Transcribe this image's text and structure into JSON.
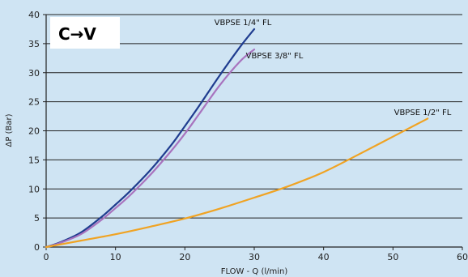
{
  "chart_data": {
    "type": "line",
    "title": "C→V",
    "xlabel": "FLOW - Q (l/min)",
    "ylabel": "ΔP (Bar)",
    "xlim": [
      0,
      60
    ],
    "ylim": [
      0,
      40
    ],
    "xticks": [
      0,
      10,
      20,
      30,
      40,
      50,
      60
    ],
    "yticks": [
      0,
      5,
      10,
      15,
      20,
      25,
      30,
      35,
      40
    ],
    "grid": "horizontal",
    "series": [
      {
        "name": "VBPSE 1/4\" FL",
        "color": "#1f3c8f",
        "x": [
          0,
          2,
          5,
          8,
          10,
          12,
          15,
          18,
          20,
          22,
          25,
          28,
          30
        ],
        "y": [
          0,
          0.8,
          2.5,
          5.2,
          7.3,
          9.5,
          13.2,
          17.5,
          20.8,
          24.2,
          29.5,
          34.5,
          37.5
        ]
      },
      {
        "name": "VBPSE 3/8\" FL",
        "color": "#a873be",
        "x": [
          0,
          2,
          5,
          8,
          10,
          12,
          15,
          18,
          20,
          22,
          25,
          28,
          30
        ],
        "y": [
          0,
          0.7,
          2.2,
          4.7,
          6.7,
          8.8,
          12.4,
          16.5,
          19.5,
          22.8,
          27.8,
          32.0,
          34.0
        ]
      },
      {
        "name": "VBPSE 1/2\" FL",
        "color": "#f0a323",
        "x": [
          0,
          5,
          10,
          15,
          20,
          25,
          30,
          35,
          40,
          45,
          50,
          55
        ],
        "y": [
          0,
          1.1,
          2.2,
          3.5,
          4.9,
          6.6,
          8.5,
          10.5,
          12.9,
          15.9,
          19.0,
          22.1
        ]
      }
    ]
  }
}
